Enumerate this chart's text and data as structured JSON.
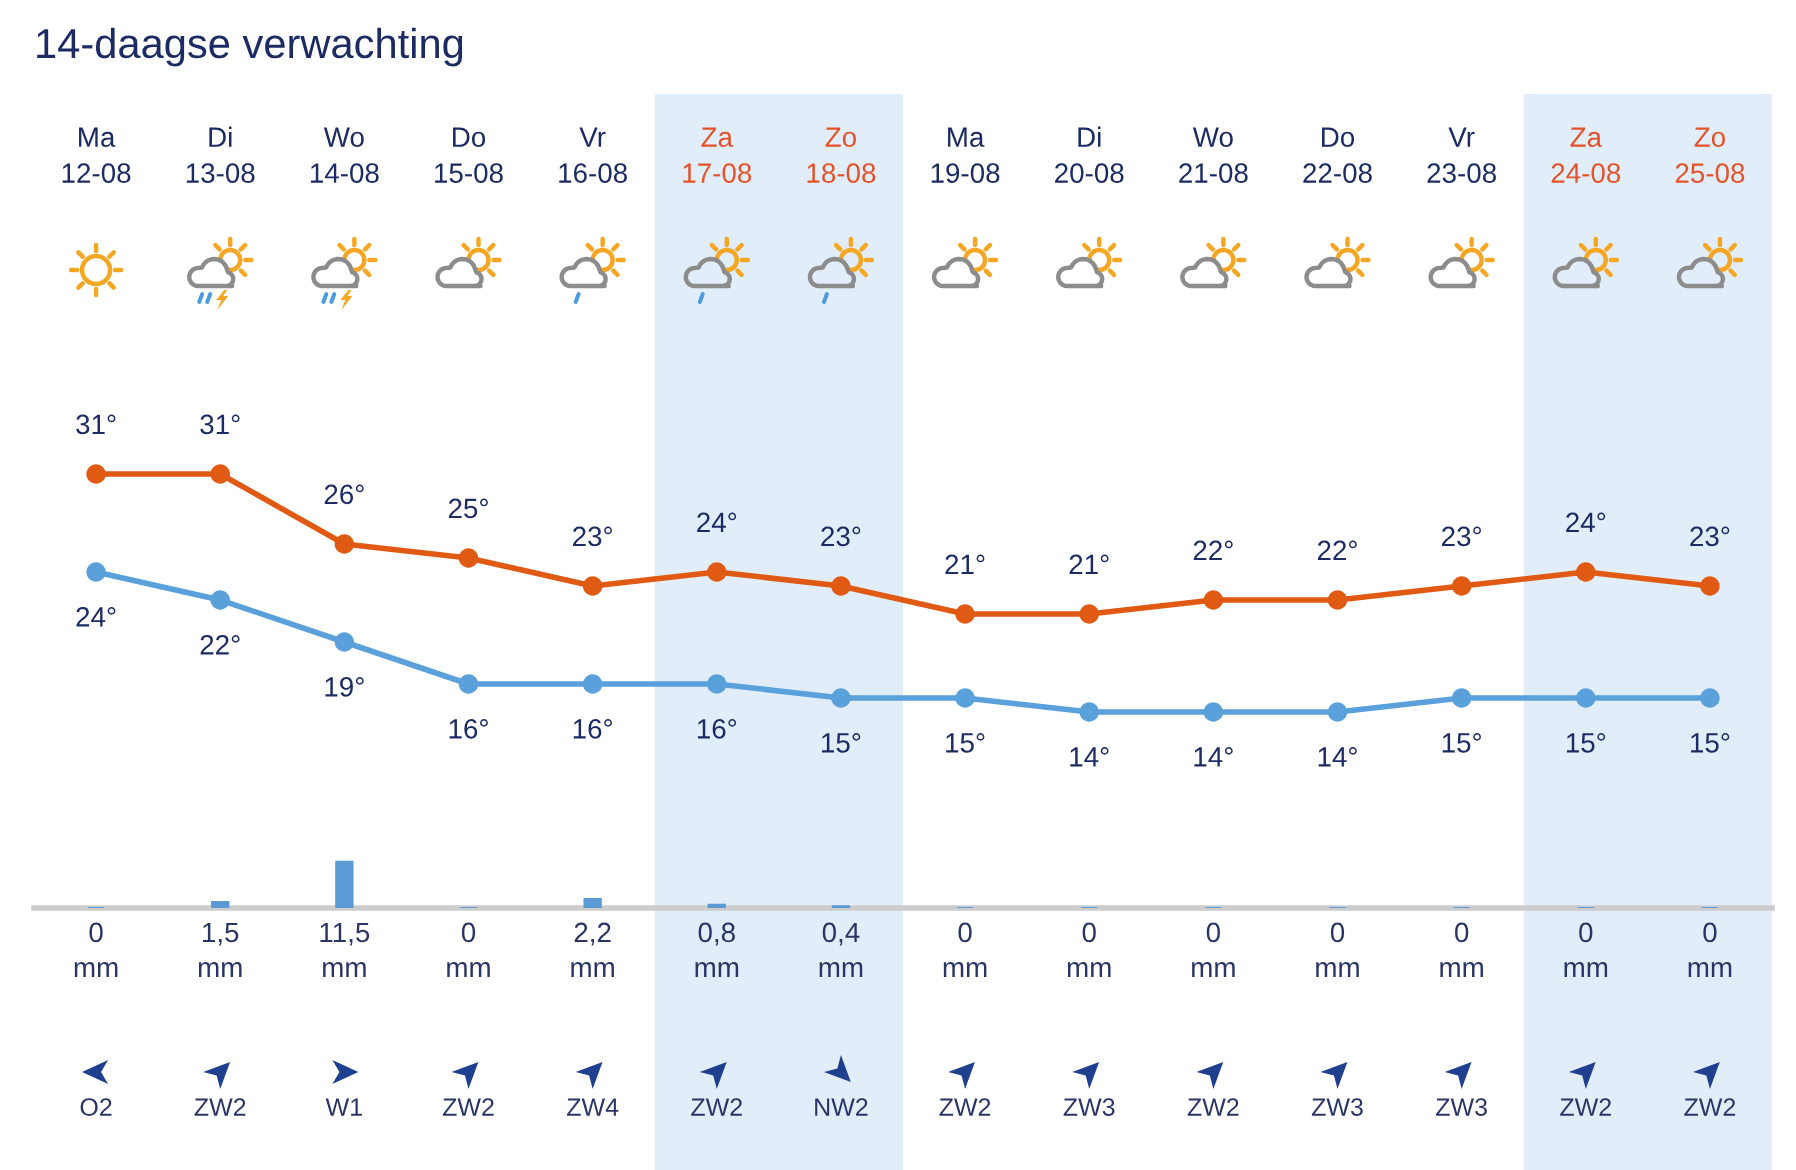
{
  "chart_data": [
    {
      "type": "line",
      "title": "14-daagse verwachting",
      "categories": [
        "Ma\n12-08",
        "Di\n13-08",
        "Wo\n14-08",
        "Do\n15-08",
        "Vr\n16-08",
        "Za\n17-08",
        "Zo\n18-08",
        "Ma\n19-08",
        "Di\n20-08",
        "Wo\n21-08",
        "Do\n22-08",
        "Vr\n23-08",
        "Za\n24-08",
        "Zo\n25-08"
      ],
      "series": [
        {
          "color": "#e05a14",
          "values": [
            31,
            31,
            26,
            25,
            23,
            24,
            23,
            21,
            21,
            22,
            22,
            23,
            24,
            23
          ],
          "value_labels": [
            "31°",
            "31°",
            "26°",
            "25°",
            "23°",
            "24°",
            "23°",
            "21°",
            "21°",
            "22°",
            "22°",
            "23°",
            "24°",
            "23°"
          ]
        },
        {
          "color": "#5aa0da",
          "values": [
            24,
            22,
            19,
            16,
            16,
            16,
            15,
            15,
            14,
            14,
            14,
            15,
            15,
            15
          ],
          "value_labels": [
            "24°",
            "22°",
            "19°",
            "16°",
            "16°",
            "16°",
            "15°",
            "15°",
            "14°",
            "14°",
            "14°",
            "15°",
            "15°",
            "15°"
          ]
        }
      ],
      "marker": "circle",
      "tick_labels": "x",
      "bands": [
        {
          "axis": "x",
          "from": "Za\n17-08",
          "to": "Zo\n18-08",
          "color": "#e1edf8"
        },
        {
          "axis": "x",
          "from": "Za\n24-08",
          "to": "Zo\n25-08",
          "color": "#e1edf8"
        }
      ]
    },
    {
      "type": "bar",
      "categories": [
        null,
        null,
        null,
        null,
        null,
        null,
        null,
        null,
        null,
        null,
        null,
        null,
        null,
        null
      ],
      "values": [
        0,
        1.5,
        11.5,
        0,
        2.2,
        0.8,
        0.4,
        0,
        0,
        0,
        0,
        0,
        0,
        0
      ],
      "color": "#5b9bd5",
      "value_labels": [
        "0\nmm",
        "1,5\nmm",
        "11,5\nmm",
        "0\nmm",
        "2,2\nmm",
        "0,8\nmm",
        "0,4\nmm",
        "0\nmm",
        "0\nmm",
        "0\nmm",
        "0\nmm",
        "0\nmm",
        "0\nmm",
        "0\nmm"
      ],
      "tick_labels": false
    },
    {
      "type": "other",
      "categories": [
        "O2",
        "ZW2",
        "W1",
        "ZW2",
        "ZW4",
        "ZW2",
        "NW2",
        "ZW2",
        "ZW3",
        "ZW2",
        "ZW3",
        "ZW3",
        "ZW2",
        "ZW2"
      ]
    }
  ]
}
